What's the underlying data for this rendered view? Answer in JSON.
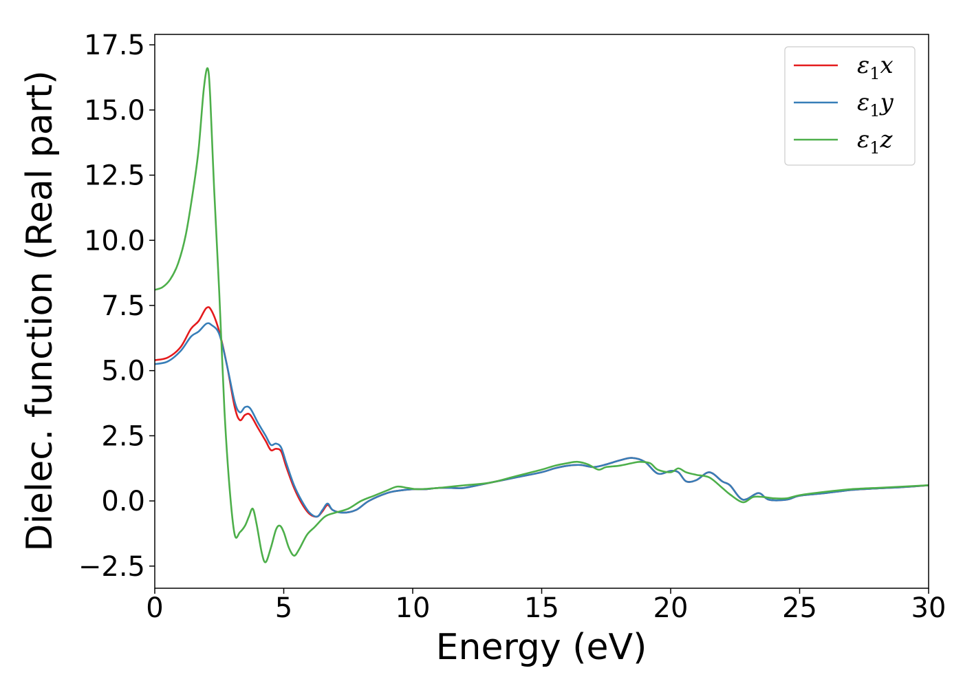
{
  "chart_data": {
    "type": "line",
    "title": "",
    "xlabel": "Energy (eV)",
    "ylabel": "Dielec. function (Real part)",
    "xlim": [
      0,
      30
    ],
    "ylim": [
      -3.35,
      17.9
    ],
    "xticks": [
      0,
      5,
      10,
      15,
      20,
      25,
      30
    ],
    "xtick_labels": [
      "0",
      "5",
      "10",
      "15",
      "20",
      "25",
      "30"
    ],
    "yticks": [
      -2.5,
      0.0,
      2.5,
      5.0,
      7.5,
      10.0,
      12.5,
      15.0,
      17.5
    ],
    "ytick_labels": [
      "−2.5",
      "0.0",
      "2.5",
      "5.0",
      "7.5",
      "10.0",
      "12.5",
      "15.0",
      "17.5"
    ],
    "grid": false,
    "legend_position": "top-right",
    "series": [
      {
        "name": "ε1x",
        "legend": {
          "base": "ε",
          "sub": "1",
          "var": "x"
        },
        "color": "#e41a1c",
        "points": [
          [
            0,
            5.4
          ],
          [
            0.5,
            5.5
          ],
          [
            1,
            5.9
          ],
          [
            1.4,
            6.6
          ],
          [
            1.7,
            6.9
          ],
          [
            2.0,
            7.4
          ],
          [
            2.2,
            7.3
          ],
          [
            2.5,
            6.5
          ],
          [
            2.8,
            5.2
          ],
          [
            3.1,
            3.6
          ],
          [
            3.3,
            3.1
          ],
          [
            3.5,
            3.3
          ],
          [
            3.7,
            3.3
          ],
          [
            4.0,
            2.8
          ],
          [
            4.3,
            2.3
          ],
          [
            4.5,
            1.95
          ],
          [
            4.7,
            2.0
          ],
          [
            4.9,
            1.9
          ],
          [
            5.1,
            1.3
          ],
          [
            5.4,
            0.5
          ],
          [
            5.7,
            -0.1
          ],
          [
            6.0,
            -0.5
          ],
          [
            6.3,
            -0.6
          ],
          [
            6.5,
            -0.4
          ],
          [
            6.7,
            -0.15
          ],
          [
            6.9,
            -0.35
          ],
          [
            7.3,
            -0.45
          ],
          [
            7.8,
            -0.35
          ],
          [
            8.3,
            0
          ],
          [
            9,
            0.3
          ],
          [
            9.5,
            0.4
          ],
          [
            10,
            0.45
          ],
          [
            10.5,
            0.45
          ],
          [
            11,
            0.5
          ],
          [
            11.5,
            0.5
          ],
          [
            12,
            0.5
          ],
          [
            13,
            0.7
          ],
          [
            14,
            0.9
          ],
          [
            15,
            1.1
          ],
          [
            15.5,
            1.25
          ],
          [
            16,
            1.35
          ],
          [
            16.5,
            1.38
          ],
          [
            17,
            1.3
          ],
          [
            17.5,
            1.4
          ],
          [
            18,
            1.55
          ],
          [
            18.5,
            1.65
          ],
          [
            19,
            1.5
          ],
          [
            19.5,
            1.05
          ],
          [
            20,
            1.15
          ],
          [
            20.3,
            1.1
          ],
          [
            20.6,
            0.75
          ],
          [
            21,
            0.8
          ],
          [
            21.5,
            1.1
          ],
          [
            22,
            0.75
          ],
          [
            22.3,
            0.6
          ],
          [
            22.8,
            0.05
          ],
          [
            23.4,
            0.3
          ],
          [
            23.8,
            0.05
          ],
          [
            24.5,
            0.05
          ],
          [
            25,
            0.2
          ],
          [
            26,
            0.3
          ],
          [
            27,
            0.42
          ],
          [
            28,
            0.48
          ],
          [
            29,
            0.53
          ],
          [
            30,
            0.6
          ]
        ]
      },
      {
        "name": "ε1y",
        "legend": {
          "base": "ε",
          "sub": "1",
          "var": "y"
        },
        "color": "#377eb8",
        "points": [
          [
            0,
            5.25
          ],
          [
            0.5,
            5.35
          ],
          [
            1,
            5.75
          ],
          [
            1.4,
            6.3
          ],
          [
            1.7,
            6.5
          ],
          [
            2.0,
            6.8
          ],
          [
            2.2,
            6.75
          ],
          [
            2.5,
            6.4
          ],
          [
            2.8,
            5.2
          ],
          [
            3.1,
            3.8
          ],
          [
            3.3,
            3.4
          ],
          [
            3.5,
            3.6
          ],
          [
            3.7,
            3.55
          ],
          [
            4.0,
            3.0
          ],
          [
            4.3,
            2.5
          ],
          [
            4.5,
            2.15
          ],
          [
            4.7,
            2.2
          ],
          [
            4.9,
            2.05
          ],
          [
            5.1,
            1.45
          ],
          [
            5.4,
            0.6
          ],
          [
            5.7,
            0
          ],
          [
            6.0,
            -0.45
          ],
          [
            6.3,
            -0.6
          ],
          [
            6.5,
            -0.35
          ],
          [
            6.7,
            -0.1
          ],
          [
            6.9,
            -0.35
          ],
          [
            7.3,
            -0.45
          ],
          [
            7.8,
            -0.35
          ],
          [
            8.3,
            0
          ],
          [
            9,
            0.3
          ],
          [
            9.5,
            0.4
          ],
          [
            10,
            0.45
          ],
          [
            10.5,
            0.45
          ],
          [
            11,
            0.5
          ],
          [
            11.5,
            0.5
          ],
          [
            12,
            0.5
          ],
          [
            13,
            0.7
          ],
          [
            14,
            0.9
          ],
          [
            15,
            1.1
          ],
          [
            15.5,
            1.25
          ],
          [
            16,
            1.35
          ],
          [
            16.5,
            1.38
          ],
          [
            17,
            1.3
          ],
          [
            17.5,
            1.4
          ],
          [
            18,
            1.55
          ],
          [
            18.5,
            1.65
          ],
          [
            19,
            1.5
          ],
          [
            19.5,
            1.05
          ],
          [
            20,
            1.15
          ],
          [
            20.3,
            1.1
          ],
          [
            20.6,
            0.75
          ],
          [
            21,
            0.8
          ],
          [
            21.5,
            1.1
          ],
          [
            22,
            0.75
          ],
          [
            22.3,
            0.6
          ],
          [
            22.8,
            0.05
          ],
          [
            23.4,
            0.3
          ],
          [
            23.8,
            0.05
          ],
          [
            24.5,
            0.05
          ],
          [
            25,
            0.2
          ],
          [
            26,
            0.3
          ],
          [
            27,
            0.42
          ],
          [
            28,
            0.48
          ],
          [
            29,
            0.53
          ],
          [
            30,
            0.6
          ]
        ]
      },
      {
        "name": "ε1z",
        "legend": {
          "base": "ε",
          "sub": "1",
          "var": "z"
        },
        "color": "#4daf4a",
        "points": [
          [
            0,
            8.1
          ],
          [
            0.3,
            8.2
          ],
          [
            0.6,
            8.5
          ],
          [
            0.9,
            9.1
          ],
          [
            1.2,
            10.2
          ],
          [
            1.5,
            12.0
          ],
          [
            1.7,
            13.5
          ],
          [
            1.9,
            15.8
          ],
          [
            2.05,
            16.6
          ],
          [
            2.15,
            15.5
          ],
          [
            2.3,
            12.0
          ],
          [
            2.5,
            8.0
          ],
          [
            2.7,
            3.5
          ],
          [
            2.9,
            0.5
          ],
          [
            3.1,
            -1.3
          ],
          [
            3.3,
            -1.2
          ],
          [
            3.5,
            -0.95
          ],
          [
            3.65,
            -0.6
          ],
          [
            3.8,
            -0.3
          ],
          [
            3.95,
            -0.9
          ],
          [
            4.15,
            -2.0
          ],
          [
            4.3,
            -2.35
          ],
          [
            4.5,
            -1.8
          ],
          [
            4.7,
            -1.1
          ],
          [
            4.85,
            -0.95
          ],
          [
            5.0,
            -1.2
          ],
          [
            5.2,
            -1.8
          ],
          [
            5.4,
            -2.1
          ],
          [
            5.6,
            -1.85
          ],
          [
            5.9,
            -1.3
          ],
          [
            6.2,
            -1.0
          ],
          [
            6.6,
            -0.6
          ],
          [
            7.0,
            -0.45
          ],
          [
            7.5,
            -0.3
          ],
          [
            8,
            0
          ],
          [
            8.5,
            0.2
          ],
          [
            9,
            0.4
          ],
          [
            9.4,
            0.55
          ],
          [
            9.8,
            0.5
          ],
          [
            10.2,
            0.45
          ],
          [
            11,
            0.5
          ],
          [
            11.5,
            0.55
          ],
          [
            12,
            0.6
          ],
          [
            13,
            0.7
          ],
          [
            14,
            0.95
          ],
          [
            15,
            1.2
          ],
          [
            15.5,
            1.35
          ],
          [
            16,
            1.45
          ],
          [
            16.4,
            1.5
          ],
          [
            16.8,
            1.4
          ],
          [
            17.2,
            1.2
          ],
          [
            17.5,
            1.3
          ],
          [
            18,
            1.35
          ],
          [
            18.5,
            1.45
          ],
          [
            18.8,
            1.5
          ],
          [
            19.2,
            1.45
          ],
          [
            19.5,
            1.2
          ],
          [
            20,
            1.1
          ],
          [
            20.3,
            1.25
          ],
          [
            20.6,
            1.1
          ],
          [
            21,
            1.0
          ],
          [
            21.5,
            0.9
          ],
          [
            22,
            0.5
          ],
          [
            22.3,
            0.25
          ],
          [
            22.8,
            -0.05
          ],
          [
            23.2,
            0.15
          ],
          [
            23.6,
            0.15
          ],
          [
            24,
            0.1
          ],
          [
            24.5,
            0.1
          ],
          [
            25,
            0.22
          ],
          [
            26,
            0.35
          ],
          [
            27,
            0.45
          ],
          [
            28,
            0.5
          ],
          [
            29,
            0.55
          ],
          [
            30,
            0.6
          ]
        ]
      }
    ]
  }
}
